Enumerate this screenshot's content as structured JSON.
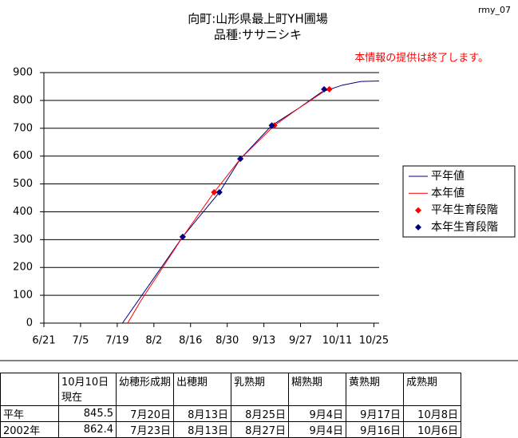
{
  "chart_data": {
    "type": "line",
    "title": "向町:山形県最上町YH圃場",
    "subtitle": "品種:ササニシキ",
    "annotations": [
      "rmy_07",
      "本情報の提供は終了します。"
    ],
    "xlim": [
      172,
      300
    ],
    "xticks": [
      {
        "value": 172,
        "label": "6/21"
      },
      {
        "value": 186,
        "label": "7/5"
      },
      {
        "value": 200,
        "label": "7/19"
      },
      {
        "value": 214,
        "label": "8/2"
      },
      {
        "value": 228,
        "label": "8/16"
      },
      {
        "value": 242,
        "label": "8/30"
      },
      {
        "value": 256,
        "label": "9/13"
      },
      {
        "value": 270,
        "label": "9/27"
      },
      {
        "value": 284,
        "label": "10/11"
      },
      {
        "value": 298,
        "label": "10/25"
      }
    ],
    "ylim": [
      0,
      900
    ],
    "yticks": [
      0,
      100,
      200,
      300,
      400,
      500,
      600,
      700,
      800,
      900
    ],
    "grid": true,
    "series": [
      {
        "name": "平年値",
        "color": "#000080",
        "mark": "line",
        "x": [
          202,
          225,
          239,
          247,
          259,
          269,
          278,
          286,
          293,
          300
        ],
        "values": [
          0,
          310,
          470,
          590,
          710,
          770,
          830,
          855,
          868,
          870
        ]
      },
      {
        "name": "本年値",
        "color": "#ff0000",
        "mark": "line",
        "x": [
          204,
          209,
          225,
          237,
          247,
          260,
          269,
          281
        ],
        "values": [
          0,
          80,
          310,
          470,
          590,
          710,
          770,
          845
        ]
      },
      {
        "name": "平年生育段階",
        "color": "#ff0000",
        "mark": "diamond",
        "x": [
          225,
          237,
          247,
          260,
          281
        ],
        "values": [
          310,
          470,
          590,
          710,
          840
        ]
      },
      {
        "name": "本年生育段階",
        "color": "#000080",
        "mark": "diamond",
        "x": [
          225,
          239,
          247,
          259,
          279
        ],
        "values": [
          310,
          470,
          590,
          710,
          840
        ]
      }
    ]
  },
  "table": {
    "header": [
      "",
      "10月10日現在",
      "幼穂形成期",
      "出穂期",
      "乳熟期",
      "糊熟期",
      "黄熟期",
      "成熟期"
    ],
    "rows": [
      [
        "平年",
        "845.5",
        "7月20日",
        "8月13日",
        "8月25日",
        "9月4日",
        "9月17日",
        "10月8日"
      ],
      [
        "2002年",
        "862.4",
        "7月23日",
        "8月13日",
        "8月27日",
        "9月4日",
        "9月16日",
        "10月6日"
      ]
    ]
  }
}
